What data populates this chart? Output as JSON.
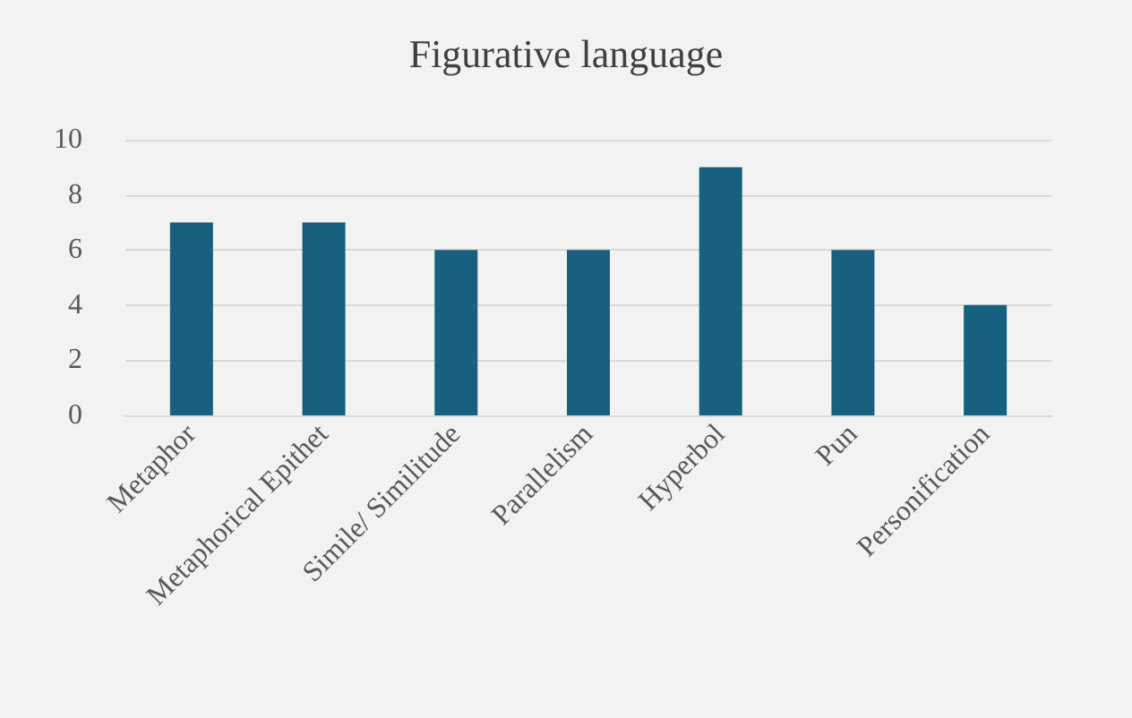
{
  "chart_data": {
    "type": "bar",
    "title": "Figurative language",
    "categories": [
      "Metaphor",
      "Metaphorical Epithet",
      "Simile/ Similitude",
      "Parallelism",
      "Hyperbol",
      "Pun",
      "Personification"
    ],
    "values": [
      7,
      7,
      6,
      6,
      9,
      6,
      4
    ],
    "color": "#17607f",
    "ylim": [
      0,
      10
    ],
    "yticks": [
      0,
      2,
      4,
      6,
      8,
      10
    ],
    "grid": "y"
  }
}
